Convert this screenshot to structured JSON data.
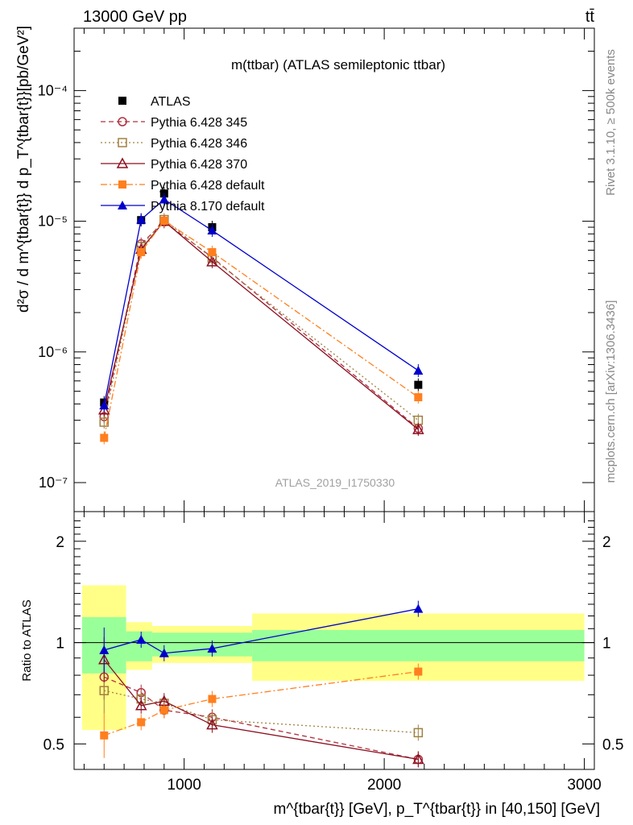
{
  "header": {
    "left": "13000 GeV pp",
    "right": "tt̄"
  },
  "side_text": {
    "top": "Rivet 3.1.10, ≥ 500k events",
    "bottom": "mcplots.cern.ch [arXiv:1306.3436]"
  },
  "colors": {
    "ATLAS": "#000000",
    "Pythia 6.428 345": "#b03040",
    "Pythia 6.428 346": "#a08040",
    "Pythia 6.428 370": "#8b1020",
    "Pythia 6.428 default": "#ff7f1e",
    "Pythia 8.170 default": "#0000cc",
    "band_inner": "#99ff99",
    "band_outer": "#ffff88"
  },
  "chart_data": [
    {
      "type": "scatter",
      "title": "m(ttbar) (ATLAS semileptonic ttbar)",
      "watermark": "ATLAS_2019_I1750330",
      "ylabel": "d²σ / d m^{tbar{t}} d p_T^{tbar{t}}[pb/GeV²]",
      "yscale": "log",
      "ylim": [
        6e-08,
        0.0003
      ],
      "xlim": [
        450,
        3050
      ],
      "ytick_labels": [
        "10⁻⁷",
        "10⁻⁶",
        "10⁻⁵",
        "10⁻⁴"
      ],
      "x": [
        600,
        785,
        900,
        1140,
        2170
      ],
      "series": [
        {
          "name": "ATLAS",
          "marker": "square-filled",
          "values": [
            4.1e-07,
            1.02e-05,
            1.63e-05,
            9e-06,
            5.6e-07
          ]
        },
        {
          "name": "Pythia 6.428 345",
          "marker": "circle-open",
          "line": "dashed",
          "values": [
            3.2e-07,
            6.7e-06,
            9.9e-06,
            5.3e-06,
            2.6e-07
          ]
        },
        {
          "name": "Pythia 6.428 346",
          "marker": "square-open",
          "line": "dotted",
          "values": [
            2.9e-07,
            6.4e-06,
            1.03e-05,
            5.2e-06,
            3e-07
          ]
        },
        {
          "name": "Pythia 6.428 370",
          "marker": "triangle-open",
          "line": "solid",
          "values": [
            3.6e-07,
            6.1e-06,
            1e-05,
            4.9e-06,
            2.55e-07
          ]
        },
        {
          "name": "Pythia 6.428 default",
          "marker": "square-filled",
          "line": "dashdot",
          "values": [
            2.2e-07,
            5.8e-06,
            1.01e-05,
            5.8e-06,
            4.5e-07
          ]
        },
        {
          "name": "Pythia 8.170 default",
          "marker": "triangle-filled",
          "line": "solid",
          "values": [
            3.9e-07,
            1.03e-05,
            1.47e-05,
            8.5e-06,
            7.2e-07
          ]
        }
      ],
      "legend_placement": "top-left"
    },
    {
      "type": "scatter",
      "ylabel": "Ratio to ATLAS",
      "xlabel": "m^{tbar{t}} [GeV], p_T^{tbar{t}} in [40,150] [GeV]",
      "yscale": "log",
      "ylim": [
        0.42,
        2.45
      ],
      "xlim": [
        450,
        3050
      ],
      "ytick_labels": [
        "0.5",
        "1",
        "2"
      ],
      "xtick_labels": [
        "1000",
        "2000",
        "3000"
      ],
      "bands": [
        {
          "x0": 490,
          "x1": 710,
          "inner": [
            0.81,
            1.19
          ],
          "outer": [
            0.55,
            1.48
          ]
        },
        {
          "x0": 710,
          "x1": 840,
          "inner": [
            0.88,
            1.08
          ],
          "outer": [
            0.83,
            1.15
          ]
        },
        {
          "x0": 840,
          "x1": 1340,
          "inner": [
            0.91,
            1.07
          ],
          "outer": [
            0.87,
            1.12
          ]
        },
        {
          "x0": 1340,
          "x1": 3000,
          "inner": [
            0.88,
            1.09
          ],
          "outer": [
            0.77,
            1.22
          ]
        }
      ],
      "series": [
        {
          "name": "Pythia 6.428 345",
          "values": [
            0.79,
            0.71,
            0.63,
            0.6,
            0.45
          ]
        },
        {
          "name": "Pythia 6.428 346",
          "values": [
            0.72,
            0.68,
            0.66,
            0.59,
            0.54
          ]
        },
        {
          "name": "Pythia 6.428 370",
          "values": [
            0.89,
            0.65,
            0.67,
            0.57,
            0.45
          ]
        },
        {
          "name": "Pythia 6.428 default",
          "values": [
            0.53,
            0.58,
            0.63,
            0.68,
            0.82
          ]
        },
        {
          "name": "Pythia 8.170 default",
          "values": [
            0.95,
            1.02,
            0.93,
            0.96,
            1.26
          ]
        }
      ]
    }
  ]
}
